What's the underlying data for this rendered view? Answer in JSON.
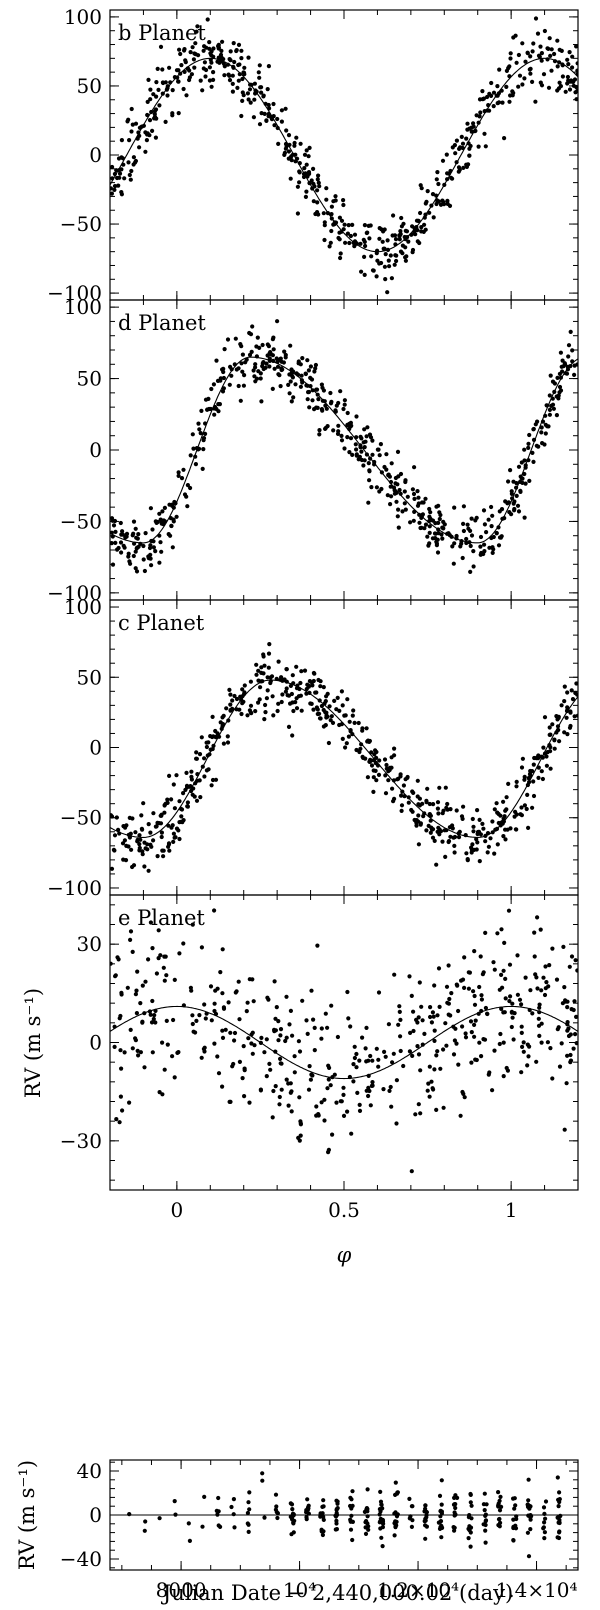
{
  "chart_data": [
    {
      "type": "scatter",
      "panel_label": "b Planet",
      "xlim": [
        -0.2,
        1.2
      ],
      "ylim": [
        -105,
        105
      ],
      "x_ticks": [],
      "y_ticks": [
        -100,
        -50,
        0,
        50,
        100
      ],
      "y_tick_labels": [
        "−100",
        "−50",
        "0",
        "50",
        "100"
      ],
      "xlabel": "",
      "ylabel": "",
      "fit": {
        "amplitude": 70,
        "center": 0.1,
        "shape": "sine"
      },
      "scatter_sd": 11,
      "n_points": 620,
      "grid": false
    },
    {
      "type": "scatter",
      "panel_label": "d Planet",
      "xlim": [
        -0.2,
        1.2
      ],
      "ylim": [
        -105,
        105
      ],
      "x_ticks": [],
      "y_ticks": [
        -100,
        -50,
        0,
        50,
        100
      ],
      "y_tick_labels": [
        "−100",
        "−50",
        "0",
        "50",
        "100"
      ],
      "xlabel": "",
      "ylabel": "",
      "fit": {
        "amplitude": 65,
        "min_phase": -0.1,
        "max_phase": 0.22,
        "shape": "eccentric"
      },
      "scatter_sd": 11,
      "n_points": 620,
      "grid": false
    },
    {
      "type": "scatter",
      "panel_label": "c Planet",
      "xlim": [
        -0.2,
        1.2
      ],
      "ylim": [
        -105,
        105
      ],
      "x_ticks": [],
      "y_ticks": [
        -100,
        -50,
        0,
        50,
        100
      ],
      "y_tick_labels": [
        "−100",
        "−50",
        "0",
        "50",
        "100"
      ],
      "xlabel": "",
      "ylabel": "",
      "fit": {
        "amplitude": 56,
        "offset": -8,
        "min_phase": -0.1,
        "max_phase": 0.28,
        "shape": "eccentric"
      },
      "scatter_sd": 11,
      "n_points": 620,
      "grid": false
    },
    {
      "type": "scatter",
      "panel_label": "e Planet",
      "xlim": [
        -0.2,
        1.2
      ],
      "ylim": [
        -45,
        45
      ],
      "x_ticks": [
        0,
        0.5,
        1
      ],
      "x_tick_labels": [
        "0",
        "0.5",
        "1"
      ],
      "y_ticks": [
        -30,
        0,
        30
      ],
      "y_tick_labels": [
        "−30",
        "0",
        "30"
      ],
      "xlabel": "φ",
      "ylabel": "RV (m s⁻¹)",
      "fit": {
        "amplitude": 11,
        "center": 0.0,
        "shape": "cosine"
      },
      "scatter_sd": 12,
      "n_points": 520,
      "grid": false
    },
    {
      "type": "scatter",
      "panel_label": "",
      "xlim": [
        6800,
        14700
      ],
      "ylim": [
        -50,
        50
      ],
      "x_ticks": [
        8000,
        10000,
        12000,
        14000
      ],
      "x_tick_labels": [
        "8000",
        "10⁴",
        "1.2×10⁴",
        "1.4×10⁴"
      ],
      "y_ticks": [
        -40,
        0,
        40
      ],
      "y_tick_labels": [
        "−40",
        "0",
        "40"
      ],
      "xlabel": "Julian Date − 2,440,000.02 (day)",
      "ylabel": "RV (m s⁻¹)",
      "zero_line": true,
      "scatter_sd": 12,
      "n_points": 300,
      "grid": false
    }
  ]
}
